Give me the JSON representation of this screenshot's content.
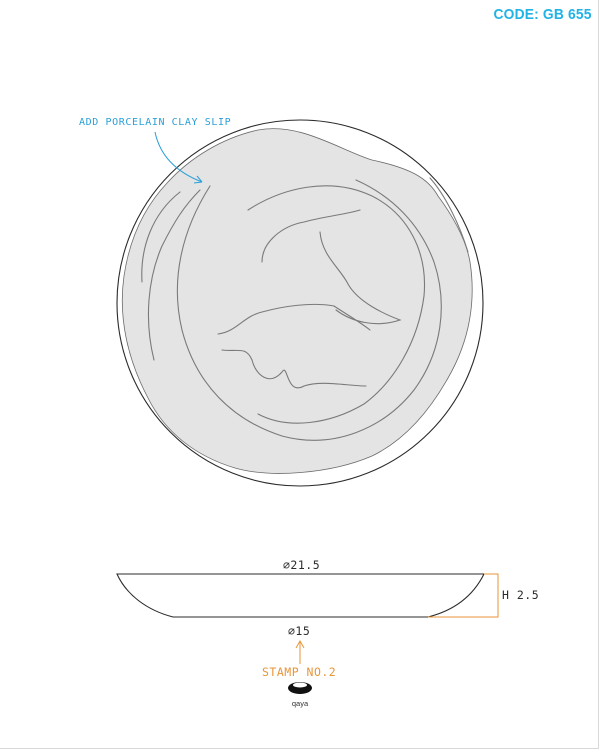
{
  "header": {
    "code": "CODE: GB 655"
  },
  "top_view": {
    "note": "ADD PORCELAIN CLAY SLIP"
  },
  "side_view": {
    "top_diameter": "⌀21.5",
    "height": "H 2.5",
    "base_diameter": "⌀15",
    "stamp_label": "STAMP NO.2",
    "stamp_logo_text": "qaya"
  },
  "colors": {
    "note_blue": "#2a9fd8",
    "stamp_orange": "#e8963a",
    "slip_gray": "#e4e4e4",
    "outline": "#2b2b2b",
    "code_blue": "#1fb3e6"
  }
}
